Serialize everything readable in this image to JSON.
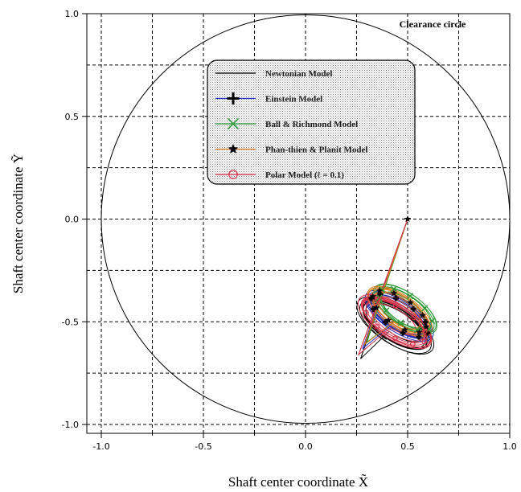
{
  "chart_data": {
    "type": "line",
    "title": "",
    "xlabel": "Shaft center coordinate X̃",
    "ylabel": "Shaft center coordinate Ỹ",
    "xlim": [
      -1.0,
      1.0
    ],
    "ylim": [
      -1.0,
      1.0
    ],
    "x_ticks": [
      "-1.0",
      "-0.5",
      "0.0",
      "0.5",
      "1.0"
    ],
    "y_ticks": [
      "1.0",
      "0.5",
      "0.0",
      "-0.5",
      "-1.0"
    ],
    "grid": true,
    "annotation": "Clearance circle",
    "clearance_circle": {
      "center": [
        0,
        0
      ],
      "radius": 1.0
    },
    "legend": {
      "placement": "top-center",
      "entries": [
        {
          "label": "Newtonian Model",
          "marker": "none",
          "color": "#000000"
        },
        {
          "label": "Einstein Model",
          "marker": "plus",
          "color": "#1f2fbf"
        },
        {
          "label": "Ball & Richmond Model",
          "marker": "x",
          "color": "#2e9a3a"
        },
        {
          "label": "Phan-thien & Planit Model",
          "marker": "star",
          "color": "#e07a1a"
        },
        {
          "label": "Polar Model  (ℓ = 0.1)",
          "marker": "circle",
          "color": "#d8324a"
        }
      ]
    },
    "series": [
      {
        "name": "Newtonian Model",
        "color": "#000000",
        "center": [
          0.44,
          -0.5
        ],
        "radii": [
          0.08,
          0.19
        ],
        "tilt_deg": 57,
        "shift": [
          0.0,
          -0.02
        ],
        "start": [
          0.5,
          0.0
        ],
        "entry": [
          0.27,
          -0.68
        ]
      },
      {
        "name": "Einstein Model",
        "color": "#1f2fbf",
        "center": [
          0.45,
          -0.47
        ],
        "radii": [
          0.07,
          0.17
        ],
        "tilt_deg": 57,
        "shift": [
          0.01,
          0.0
        ],
        "start": [
          0.5,
          0.0
        ],
        "entry": [
          0.28,
          -0.63
        ]
      },
      {
        "name": "Ball & Richmond Model",
        "color": "#2e9a3a",
        "center": [
          0.47,
          -0.45
        ],
        "radii": [
          0.07,
          0.16
        ],
        "tilt_deg": 55,
        "shift": [
          0.02,
          0.01
        ],
        "start": [
          0.5,
          0.0
        ],
        "entry": [
          0.3,
          -0.6
        ]
      },
      {
        "name": "Phan-thien & Planit Model",
        "color": "#e07a1a",
        "center": [
          0.46,
          -0.46
        ],
        "radii": [
          0.07,
          0.16
        ],
        "tilt_deg": 56,
        "shift": [
          0.0,
          0.01
        ],
        "start": [
          0.5,
          0.0
        ],
        "entry": [
          0.29,
          -0.61
        ]
      },
      {
        "name": "Polar Model  (ℓ = 0.1)",
        "color": "#d8324a",
        "center": [
          0.44,
          -0.49
        ],
        "radii": [
          0.075,
          0.18
        ],
        "tilt_deg": 58,
        "shift": [
          0.0,
          -0.01
        ],
        "start": [
          0.5,
          0.0
        ],
        "entry": [
          0.26,
          -0.66
        ]
      }
    ]
  }
}
